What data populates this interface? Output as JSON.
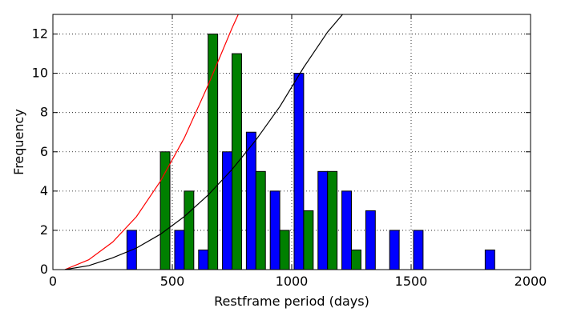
{
  "chart_data": {
    "type": "bar",
    "xlabel": "Restframe period (days)",
    "ylabel": "Frequency",
    "xlim": [
      0,
      2000
    ],
    "ylim": [
      0,
      13
    ],
    "xticks": [
      0,
      500,
      1000,
      1500,
      2000
    ],
    "yticks": [
      0,
      2,
      4,
      6,
      8,
      10,
      12
    ],
    "grid": true,
    "bin_width": 100,
    "bar_width": 40,
    "series": [
      {
        "color": "#0000ff",
        "x": [
          330,
          530,
          630,
          730,
          830,
          930,
          1030,
          1130,
          1230,
          1330,
          1430,
          1530,
          1830
        ],
        "values": [
          2,
          2,
          1,
          6,
          7,
          4,
          10,
          5,
          4,
          3,
          2,
          2,
          1
        ]
      },
      {
        "color": "#008000",
        "x": [
          470,
          570,
          670,
          770,
          870,
          970,
          1070,
          1170,
          1270
        ],
        "values": [
          6,
          4,
          12,
          11,
          5,
          2,
          3,
          5,
          1
        ]
      }
    ],
    "curves": [
      {
        "color": "#ff0000",
        "x": [
          50,
          150,
          250,
          350,
          450,
          550,
          650,
          750,
          780
        ],
        "values": [
          0.0,
          0.5,
          1.4,
          2.7,
          4.5,
          6.7,
          9.4,
          12.3,
          13.1
        ]
      },
      {
        "color": "#000000",
        "x": [
          50,
          150,
          250,
          350,
          450,
          550,
          650,
          750,
          850,
          950,
          1050,
          1150,
          1220
        ],
        "values": [
          0.0,
          0.2,
          0.6,
          1.1,
          1.8,
          2.7,
          3.8,
          5.1,
          6.6,
          8.3,
          10.3,
          12.1,
          13.1
        ]
      }
    ]
  }
}
